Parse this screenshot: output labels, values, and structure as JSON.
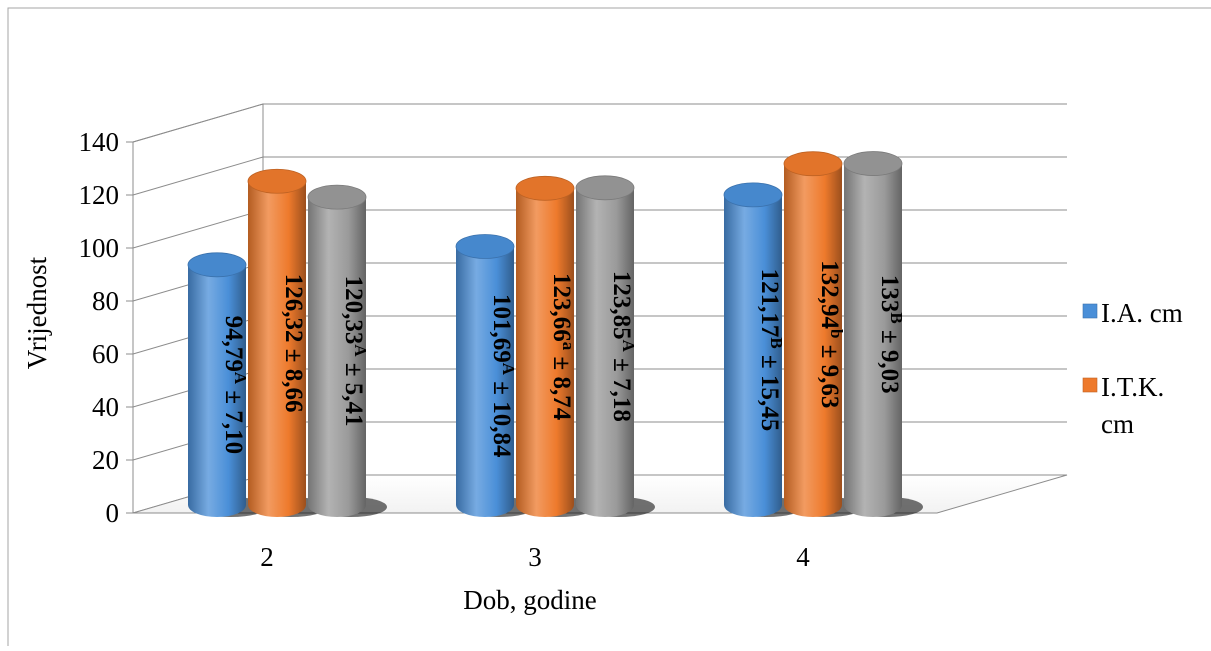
{
  "chart_data": {
    "type": "bar",
    "style": "3d-cylinder",
    "title": "",
    "xlabel": "Dob, godine",
    "ylabel": "Vrijednost",
    "categories": [
      "2",
      "3",
      "4"
    ],
    "ylim": [
      0,
      140
    ],
    "yticks": [
      "0",
      "20",
      "40",
      "60",
      "80",
      "100",
      "120",
      "140"
    ],
    "grid": true,
    "legend_position": "right",
    "series": [
      {
        "name": "I.A. cm",
        "color": "#4a8fd8",
        "values": [
          94.79,
          101.69,
          121.17
        ],
        "labels": [
          {
            "value": "94,79",
            "sup": "A",
            "sd": " ± 7,10"
          },
          {
            "value": "101,69",
            "sup": "A",
            "sd": " ± 10,84"
          },
          {
            "value": "121,17",
            "sup": "B",
            "sd": " ± 15,45"
          }
        ]
      },
      {
        "name": "I.T.K. cm",
        "color": "#ee7a2c",
        "values": [
          126.32,
          123.66,
          132.94
        ],
        "labels": [
          {
            "value": "126,32",
            "sup": "",
            "sd": " ± 8,66"
          },
          {
            "value": "123,66",
            "sup": "a",
            "sd": " ± 8,74"
          },
          {
            "value": "132,94",
            "sup": "b",
            "sd": " ± 9,63"
          }
        ]
      },
      {
        "name": "",
        "color": "#9a9a9a",
        "values": [
          120.33,
          123.85,
          133
        ],
        "labels": [
          {
            "value": "120,33",
            "sup": "A",
            "sd": " ± 5,41"
          },
          {
            "value": "123,85",
            "sup": "A",
            "sd": "  ± 7,18"
          },
          {
            "value": "133",
            "sup": "B",
            "sd": " ± 9,03"
          }
        ]
      }
    ],
    "legend_lines": [
      [
        "I.A. cm"
      ],
      [
        "I.T.K.",
        "cm"
      ]
    ]
  }
}
